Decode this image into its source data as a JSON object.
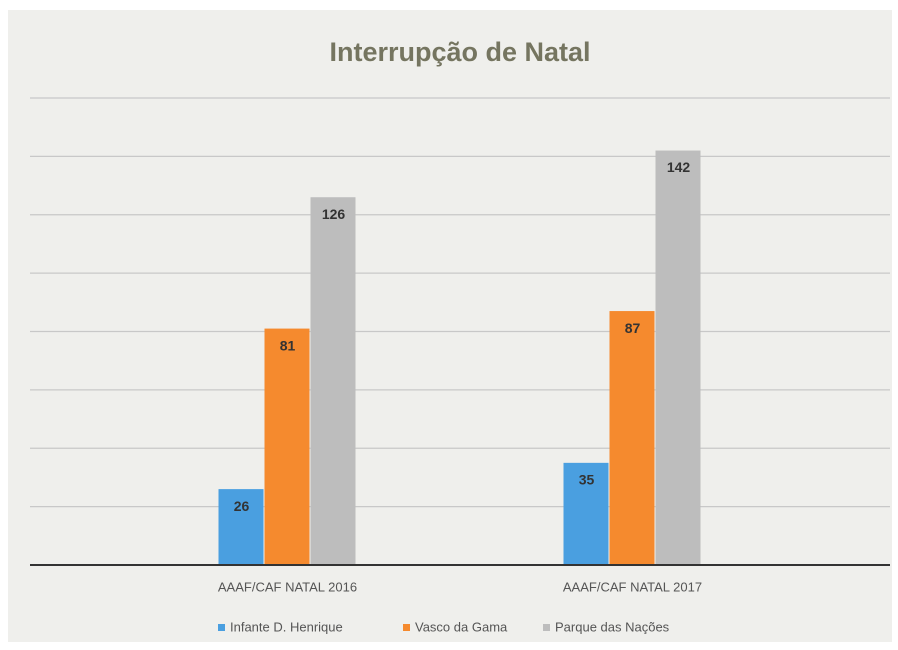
{
  "chart_data": {
    "type": "bar",
    "title": "Interrupção de Natal",
    "categories": [
      "AAAF/CAF NATAL 2016",
      "AAAF/CAF NATAL 2017"
    ],
    "series": [
      {
        "name": "Infante D. Henrique",
        "color": "#4a9fe0",
        "values": [
          26,
          35
        ]
      },
      {
        "name": "Vasco da Gama",
        "color": "#f58a2e",
        "values": [
          81,
          87
        ]
      },
      {
        "name": "Parque das Nações",
        "color": "#bdbdbd",
        "values": [
          126,
          142
        ]
      }
    ],
    "ylim": [
      0,
      160
    ],
    "yticks": [
      0,
      20,
      40,
      60,
      80,
      100,
      120,
      140,
      160
    ],
    "grid": true,
    "legend": "bottom"
  }
}
